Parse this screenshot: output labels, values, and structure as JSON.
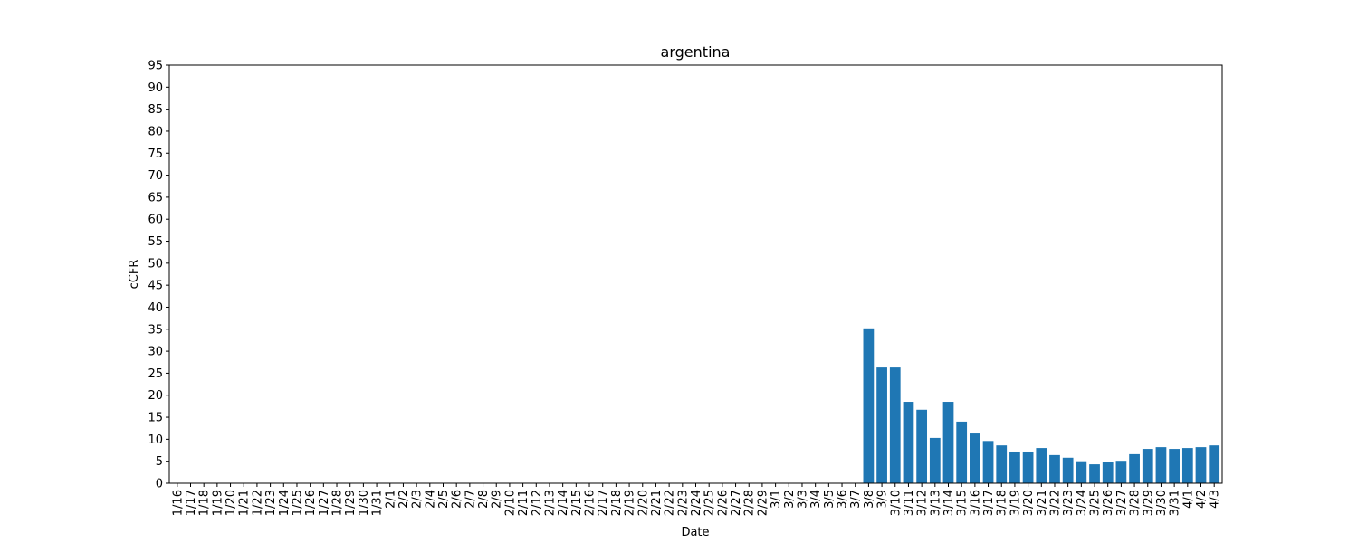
{
  "chart_data": {
    "type": "bar",
    "title": "argentina",
    "xlabel": "Date",
    "ylabel": "cCFR",
    "ylim": [
      0,
      95
    ],
    "yticks": [
      0,
      5,
      10,
      15,
      20,
      25,
      30,
      35,
      40,
      45,
      50,
      55,
      60,
      65,
      70,
      75,
      80,
      85,
      90,
      95
    ],
    "grid": false,
    "bar_color": "#1f77b4",
    "categories": [
      "1/16",
      "1/17",
      "1/18",
      "1/19",
      "1/20",
      "1/21",
      "1/22",
      "1/23",
      "1/24",
      "1/25",
      "1/26",
      "1/27",
      "1/28",
      "1/29",
      "1/30",
      "1/31",
      "2/1",
      "2/2",
      "2/3",
      "2/4",
      "2/5",
      "2/6",
      "2/7",
      "2/8",
      "2/9",
      "2/10",
      "2/11",
      "2/12",
      "2/13",
      "2/14",
      "2/15",
      "2/16",
      "2/17",
      "2/18",
      "2/19",
      "2/20",
      "2/21",
      "2/22",
      "2/23",
      "2/24",
      "2/25",
      "2/26",
      "2/27",
      "2/28",
      "2/29",
      "3/1",
      "3/2",
      "3/3",
      "3/4",
      "3/5",
      "3/6",
      "3/7",
      "3/8",
      "3/9",
      "3/10",
      "3/11",
      "3/12",
      "3/13",
      "3/14",
      "3/15",
      "3/16",
      "3/17",
      "3/18",
      "3/19",
      "3/20",
      "3/21",
      "3/22",
      "3/23",
      "3/24",
      "3/25",
      "3/26",
      "3/27",
      "3/28",
      "3/29",
      "3/30",
      "3/31",
      "4/1",
      "4/2",
      "4/3"
    ],
    "values": [
      0,
      0,
      0,
      0,
      0,
      0,
      0,
      0,
      0,
      0,
      0,
      0,
      0,
      0,
      0,
      0,
      0,
      0,
      0,
      0,
      0,
      0,
      0,
      0,
      0,
      0,
      0,
      0,
      0,
      0,
      0,
      0,
      0,
      0,
      0,
      0,
      0,
      0,
      0,
      0,
      0,
      0,
      0,
      0,
      0,
      0,
      0,
      0,
      0,
      0,
      0,
      0,
      35.2,
      26.3,
      26.3,
      18.5,
      16.7,
      10.3,
      18.5,
      14.0,
      11.3,
      9.6,
      8.6,
      7.2,
      7.2,
      8.0,
      6.4,
      5.8,
      5.0,
      4.3,
      4.9,
      5.1,
      6.6,
      7.8,
      8.2,
      7.8,
      8.0,
      8.2,
      8.6
    ]
  }
}
